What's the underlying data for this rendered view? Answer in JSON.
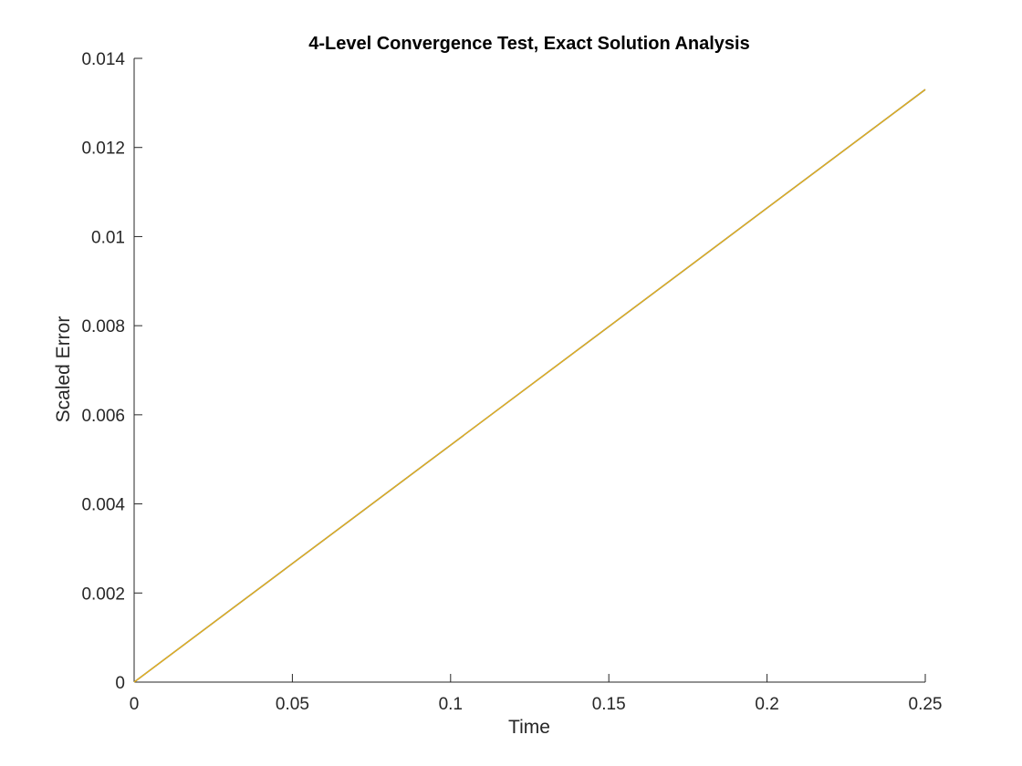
{
  "chart_data": {
    "type": "line",
    "title": "4-Level Convergence Test, Exact Solution Analysis",
    "xlabel": "Time",
    "ylabel": "Scaled Error",
    "xlim": [
      0,
      0.25
    ],
    "ylim": [
      0,
      0.014
    ],
    "x_ticks": [
      0,
      0.05,
      0.1,
      0.15,
      0.2,
      0.25
    ],
    "x_tick_labels": [
      "0",
      "0.05",
      "0.1",
      "0.15",
      "0.2",
      "0.25"
    ],
    "y_ticks": [
      0,
      0.002,
      0.004,
      0.006,
      0.008,
      0.01,
      0.012,
      0.014
    ],
    "y_tick_labels": [
      "0",
      "0.002",
      "0.004",
      "0.006",
      "0.008",
      "0.01",
      "0.012",
      "0.014"
    ],
    "grid": false,
    "legend": "none",
    "series": [
      {
        "color": "#7d7d2f",
        "x": [
          0,
          0.05,
          0.1,
          0.15,
          0.2,
          0.25
        ],
        "y": [
          0,
          0.00266,
          0.00532,
          0.00798,
          0.01064,
          0.0133
        ]
      },
      {
        "color": "#edb120",
        "x": [
          0,
          0.05,
          0.1,
          0.15,
          0.2,
          0.25
        ],
        "y": [
          0,
          0.00266,
          0.00532,
          0.00798,
          0.01064,
          0.0133
        ]
      }
    ]
  }
}
